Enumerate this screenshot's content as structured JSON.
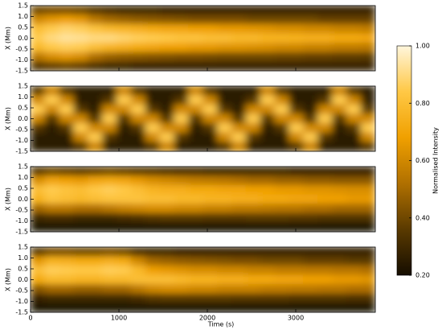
{
  "chart_data": {
    "type": "heatmap",
    "xlabel": "Time (s)",
    "ylabel": "X (Mm)",
    "xlim": [
      0,
      3900
    ],
    "xticks": [
      0,
      1000,
      2000,
      3000
    ],
    "ylim": [
      -1.5,
      1.5
    ],
    "yticks": [
      -1.5,
      {
        "value": -1.0,
        "label": "-1.0"
      },
      -0.5,
      {
        "value": 0,
        "label": "0.0"
      },
      0.5,
      {
        "value": 1.0,
        "label": "1.0"
      },
      1.5
    ],
    "colorbar": {
      "label": "Normalised Intensity",
      "lim": [
        0.2,
        1.0
      ],
      "ticks": [
        {
          "value": 0.2,
          "label": "0.20"
        },
        {
          "value": 0.4,
          "label": "0.40"
        },
        {
          "value": 0.6,
          "label": "0.60"
        },
        {
          "value": 0.8,
          "label": "0.80"
        },
        {
          "value": 1.0,
          "label": "1.00"
        }
      ],
      "colors": [
        "#150d00",
        "#5a3a00",
        "#b07000",
        "#f0a000",
        "#ffc845",
        "#fff6dc"
      ]
    },
    "panels": [
      [
        [
          0.4,
          0.42,
          0.42,
          0.4,
          0.35,
          0.32,
          0.3,
          0.3,
          0.3,
          0.28,
          0.28,
          0.28,
          0.28,
          0.28,
          0.28,
          0.28,
          0.28,
          0.28,
          0.28,
          0.28,
          0.28,
          0.28,
          0.28,
          0.28
        ],
        [
          0.6,
          0.65,
          0.68,
          0.65,
          0.55,
          0.5,
          0.48,
          0.46,
          0.45,
          0.44,
          0.43,
          0.42,
          0.42,
          0.42,
          0.42,
          0.4,
          0.4,
          0.4,
          0.4,
          0.4,
          0.38,
          0.38,
          0.38,
          0.38
        ],
        [
          0.8,
          0.85,
          0.88,
          0.86,
          0.82,
          0.78,
          0.76,
          0.74,
          0.72,
          0.7,
          0.7,
          0.68,
          0.68,
          0.66,
          0.66,
          0.65,
          0.64,
          0.62,
          0.62,
          0.6,
          0.6,
          0.58,
          0.58,
          0.56
        ],
        [
          0.85,
          0.9,
          0.93,
          0.92,
          0.9,
          0.9,
          0.88,
          0.86,
          0.85,
          0.84,
          0.82,
          0.82,
          0.8,
          0.8,
          0.78,
          0.78,
          0.76,
          0.76,
          0.75,
          0.74,
          0.74,
          0.72,
          0.72,
          0.7
        ],
        [
          0.78,
          0.84,
          0.86,
          0.85,
          0.8,
          0.76,
          0.74,
          0.72,
          0.7,
          0.68,
          0.68,
          0.66,
          0.66,
          0.64,
          0.64,
          0.63,
          0.62,
          0.6,
          0.6,
          0.58,
          0.58,
          0.56,
          0.56,
          0.55
        ],
        [
          0.55,
          0.62,
          0.65,
          0.62,
          0.52,
          0.48,
          0.46,
          0.45,
          0.44,
          0.43,
          0.42,
          0.42,
          0.41,
          0.4,
          0.4,
          0.4,
          0.4,
          0.39,
          0.39,
          0.38,
          0.38,
          0.37,
          0.37,
          0.36
        ],
        [
          0.35,
          0.38,
          0.4,
          0.38,
          0.33,
          0.3,
          0.3,
          0.28,
          0.28,
          0.28,
          0.28,
          0.28,
          0.28,
          0.28,
          0.28,
          0.28,
          0.28,
          0.28,
          0.28,
          0.28,
          0.28,
          0.28,
          0.28,
          0.28
        ]
      ],
      [
        [
          0.35,
          0.6,
          0.35,
          0.25,
          0.25,
          0.25,
          0.6,
          0.35,
          0.25,
          0.25,
          0.25,
          0.6,
          0.35,
          0.25,
          0.25,
          0.25,
          0.6,
          0.35,
          0.25,
          0.25,
          0.25,
          0.6,
          0.35,
          0.25
        ],
        [
          0.6,
          0.85,
          0.6,
          0.25,
          0.25,
          0.35,
          0.85,
          0.6,
          0.25,
          0.25,
          0.35,
          0.85,
          0.6,
          0.25,
          0.25,
          0.35,
          0.85,
          0.6,
          0.25,
          0.25,
          0.35,
          0.85,
          0.6,
          0.25
        ],
        [
          0.85,
          0.6,
          0.85,
          0.35,
          0.25,
          0.6,
          0.6,
          0.85,
          0.35,
          0.25,
          0.6,
          0.6,
          0.85,
          0.35,
          0.25,
          0.6,
          0.6,
          0.85,
          0.35,
          0.25,
          0.6,
          0.6,
          0.85,
          0.35
        ],
        [
          0.6,
          0.35,
          0.6,
          0.6,
          0.35,
          0.85,
          0.35,
          0.6,
          0.6,
          0.35,
          0.85,
          0.35,
          0.6,
          0.6,
          0.35,
          0.85,
          0.35,
          0.6,
          0.6,
          0.35,
          0.85,
          0.35,
          0.6,
          0.6
        ],
        [
          0.35,
          0.25,
          0.35,
          0.85,
          0.6,
          0.6,
          0.25,
          0.35,
          0.85,
          0.6,
          0.6,
          0.25,
          0.35,
          0.85,
          0.6,
          0.6,
          0.25,
          0.35,
          0.85,
          0.6,
          0.6,
          0.25,
          0.35,
          0.85
        ],
        [
          0.25,
          0.25,
          0.25,
          0.6,
          0.85,
          0.35,
          0.25,
          0.25,
          0.6,
          0.85,
          0.35,
          0.25,
          0.25,
          0.6,
          0.85,
          0.35,
          0.25,
          0.25,
          0.6,
          0.85,
          0.35,
          0.25,
          0.25,
          0.6
        ],
        [
          0.25,
          0.25,
          0.25,
          0.35,
          0.6,
          0.25,
          0.25,
          0.25,
          0.35,
          0.6,
          0.25,
          0.25,
          0.25,
          0.35,
          0.6,
          0.25,
          0.25,
          0.25,
          0.35,
          0.6,
          0.25,
          0.25,
          0.25,
          0.35
        ]
      ],
      [
        [
          0.35,
          0.4,
          0.38,
          0.36,
          0.38,
          0.4,
          0.38,
          0.36,
          0.35,
          0.33,
          0.32,
          0.32,
          0.3,
          0.3,
          0.3,
          0.3,
          0.3,
          0.3,
          0.28,
          0.28,
          0.28,
          0.28,
          0.28,
          0.28
        ],
        [
          0.62,
          0.7,
          0.68,
          0.66,
          0.7,
          0.72,
          0.7,
          0.66,
          0.62,
          0.6,
          0.58,
          0.56,
          0.55,
          0.54,
          0.52,
          0.5,
          0.5,
          0.48,
          0.48,
          0.46,
          0.46,
          0.45,
          0.45,
          0.45
        ],
        [
          0.8,
          0.85,
          0.82,
          0.8,
          0.84,
          0.86,
          0.84,
          0.8,
          0.76,
          0.74,
          0.74,
          0.72,
          0.72,
          0.7,
          0.7,
          0.68,
          0.68,
          0.66,
          0.66,
          0.64,
          0.64,
          0.63,
          0.62,
          0.62
        ],
        [
          0.75,
          0.82,
          0.8,
          0.78,
          0.8,
          0.82,
          0.82,
          0.82,
          0.8,
          0.8,
          0.78,
          0.78,
          0.76,
          0.76,
          0.74,
          0.74,
          0.72,
          0.72,
          0.7,
          0.7,
          0.68,
          0.68,
          0.66,
          0.66
        ],
        [
          0.5,
          0.55,
          0.55,
          0.52,
          0.52,
          0.55,
          0.58,
          0.6,
          0.62,
          0.62,
          0.6,
          0.6,
          0.58,
          0.58,
          0.56,
          0.56,
          0.55,
          0.54,
          0.54,
          0.52,
          0.52,
          0.5,
          0.5,
          0.5
        ],
        [
          0.3,
          0.32,
          0.32,
          0.3,
          0.3,
          0.3,
          0.32,
          0.33,
          0.35,
          0.36,
          0.36,
          0.36,
          0.35,
          0.35,
          0.35,
          0.36,
          0.36,
          0.36,
          0.35,
          0.35,
          0.34,
          0.34,
          0.34,
          0.34
        ],
        [
          0.22,
          0.22,
          0.22,
          0.22,
          0.22,
          0.22,
          0.22,
          0.22,
          0.22,
          0.22,
          0.22,
          0.22,
          0.22,
          0.22,
          0.22,
          0.22,
          0.22,
          0.22,
          0.22,
          0.22,
          0.22,
          0.22,
          0.22,
          0.22
        ]
      ],
      [
        [
          0.35,
          0.42,
          0.42,
          0.4,
          0.4,
          0.42,
          0.4,
          0.32,
          0.3,
          0.3,
          0.28,
          0.28,
          0.28,
          0.28,
          0.28,
          0.28,
          0.28,
          0.28,
          0.28,
          0.28,
          0.28,
          0.28,
          0.28,
          0.28
        ],
        [
          0.65,
          0.75,
          0.74,
          0.72,
          0.72,
          0.74,
          0.72,
          0.6,
          0.5,
          0.48,
          0.46,
          0.45,
          0.44,
          0.43,
          0.42,
          0.42,
          0.4,
          0.4,
          0.4,
          0.38,
          0.38,
          0.38,
          0.36,
          0.36
        ],
        [
          0.8,
          0.86,
          0.85,
          0.84,
          0.84,
          0.86,
          0.85,
          0.78,
          0.68,
          0.66,
          0.64,
          0.62,
          0.62,
          0.6,
          0.6,
          0.58,
          0.58,
          0.56,
          0.56,
          0.55,
          0.55,
          0.54,
          0.54,
          0.52
        ],
        [
          0.72,
          0.78,
          0.78,
          0.76,
          0.76,
          0.78,
          0.78,
          0.8,
          0.8,
          0.8,
          0.78,
          0.76,
          0.76,
          0.74,
          0.74,
          0.72,
          0.72,
          0.7,
          0.7,
          0.68,
          0.68,
          0.66,
          0.66,
          0.64
        ],
        [
          0.45,
          0.5,
          0.5,
          0.48,
          0.48,
          0.5,
          0.5,
          0.55,
          0.6,
          0.62,
          0.62,
          0.6,
          0.6,
          0.58,
          0.58,
          0.58,
          0.56,
          0.56,
          0.55,
          0.55,
          0.54,
          0.54,
          0.52,
          0.52
        ],
        [
          0.28,
          0.3,
          0.3,
          0.3,
          0.3,
          0.3,
          0.3,
          0.32,
          0.35,
          0.36,
          0.36,
          0.36,
          0.36,
          0.36,
          0.35,
          0.35,
          0.35,
          0.35,
          0.34,
          0.34,
          0.34,
          0.34,
          0.33,
          0.33
        ],
        [
          0.22,
          0.22,
          0.22,
          0.22,
          0.22,
          0.22,
          0.22,
          0.22,
          0.22,
          0.22,
          0.22,
          0.22,
          0.22,
          0.22,
          0.22,
          0.22,
          0.22,
          0.22,
          0.22,
          0.22,
          0.22,
          0.22,
          0.22,
          0.22
        ]
      ]
    ]
  }
}
